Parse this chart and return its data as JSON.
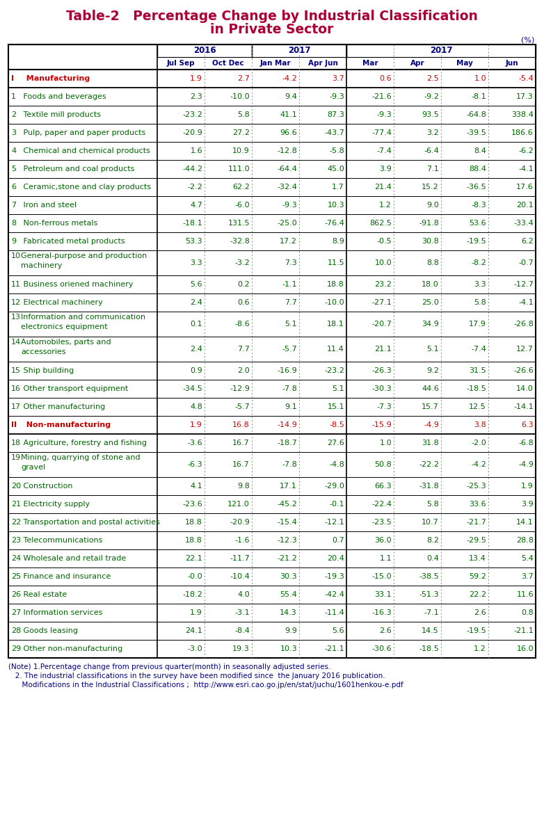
{
  "title_line1": "Table-2   Percentage Change by Industrial Classification",
  "title_line2": "in Private Sector",
  "title_color": "#aa0033",
  "header_color": "#000080",
  "unit_label": "(%)",
  "col_headers_bot": [
    "Jul Sep",
    "Oct Dec",
    "Jan Mar",
    "Apr Jun",
    "Mar",
    "Apr",
    "May",
    "Jun"
  ],
  "rows": [
    {
      "num": "I",
      "label": "  Manufacturing",
      "label_color": "#cc0000",
      "vals": [
        "1.9",
        "2.7",
        "-4.2",
        "3.7",
        "0.6",
        "2.5",
        "1.0",
        "-5.4"
      ],
      "val_color": "#cc0000",
      "bold": true,
      "multiline": false
    },
    {
      "num": "1",
      "label": " Foods and beverages",
      "label_color": "#006600",
      "vals": [
        "2.3",
        "-10.0",
        "9.4",
        "-9.3",
        "-21.6",
        "-9.2",
        "-8.1",
        "17.3"
      ],
      "val_color": "#006600",
      "bold": false,
      "multiline": false
    },
    {
      "num": "2",
      "label": " Textile mill products",
      "label_color": "#006600",
      "vals": [
        "-23.2",
        "5.8",
        "41.1",
        "87.3",
        "-9.3",
        "93.5",
        "-64.8",
        "338.4"
      ],
      "val_color": "#006600",
      "bold": false,
      "multiline": false
    },
    {
      "num": "3",
      "label": " Pulp, paper and paper products",
      "label_color": "#006600",
      "vals": [
        "-20.9",
        "27.2",
        "96.6",
        "-43.7",
        "-77.4",
        "3.2",
        "-39.5",
        "186.6"
      ],
      "val_color": "#006600",
      "bold": false,
      "multiline": false
    },
    {
      "num": "4",
      "label": " Chemical and chemical products",
      "label_color": "#006600",
      "vals": [
        "1.6",
        "10.9",
        "-12.8",
        "-5.8",
        "-7.4",
        "-6.4",
        "8.4",
        "-6.2"
      ],
      "val_color": "#006600",
      "bold": false,
      "multiline": false
    },
    {
      "num": "5",
      "label": " Petroleum and coal products",
      "label_color": "#006600",
      "vals": [
        "-44.2",
        "111.0",
        "-64.4",
        "45.0",
        "3.9",
        "7.1",
        "88.4",
        "-4.1"
      ],
      "val_color": "#006600",
      "bold": false,
      "multiline": false
    },
    {
      "num": "6",
      "label": " Ceramic,stone and clay products",
      "label_color": "#006600",
      "vals": [
        "-2.2",
        "62.2",
        "-32.4",
        "1.7",
        "21.4",
        "15.2",
        "-36.5",
        "17.6"
      ],
      "val_color": "#006600",
      "bold": false,
      "multiline": false
    },
    {
      "num": "7",
      "label": " Iron and steel",
      "label_color": "#006600",
      "vals": [
        "4.7",
        "-6.0",
        "-9.3",
        "10.3",
        "1.2",
        "9.0",
        "-8.3",
        "20.1"
      ],
      "val_color": "#006600",
      "bold": false,
      "multiline": false
    },
    {
      "num": "8",
      "label": " Non-ferrous metals",
      "label_color": "#006600",
      "vals": [
        "-18.1",
        "131.5",
        "-25.0",
        "-76.4",
        "862.5",
        "-91.8",
        "53.6",
        "-33.4"
      ],
      "val_color": "#006600",
      "bold": false,
      "multiline": false
    },
    {
      "num": "9",
      "label": " Fabricated metal products",
      "label_color": "#006600",
      "vals": [
        "53.3",
        "-32.8",
        "17.2",
        "8.9",
        "-0.5",
        "30.8",
        "-19.5",
        "6.2"
      ],
      "val_color": "#006600",
      "bold": false,
      "multiline": false
    },
    {
      "num": "10",
      "label1": "General-purpose and production",
      "label2": "machinery",
      "label_color": "#006600",
      "vals": [
        "3.3",
        "-3.2",
        "7.3",
        "11.5",
        "10.0",
        "8.8",
        "-8.2",
        "-0.7"
      ],
      "val_color": "#006600",
      "bold": false,
      "multiline": true
    },
    {
      "num": "11",
      "label": " Business oriened machinery",
      "label_color": "#006600",
      "vals": [
        "5.6",
        "0.2",
        "-1.1",
        "18.8",
        "23.2",
        "18.0",
        "3.3",
        "-12.7"
      ],
      "val_color": "#006600",
      "bold": false,
      "multiline": false
    },
    {
      "num": "12",
      "label": " Electrical machinery",
      "label_color": "#006600",
      "vals": [
        "2.4",
        "0.6",
        "7.7",
        "-10.0",
        "-27.1",
        "25.0",
        "5.8",
        "-4.1"
      ],
      "val_color": "#006600",
      "bold": false,
      "multiline": false
    },
    {
      "num": "13",
      "label1": "Information and communication",
      "label2": "electronics equipment",
      "label_color": "#006600",
      "vals": [
        "0.1",
        "-8.6",
        "5.1",
        "18.1",
        "-20.7",
        "34.9",
        "17.9",
        "-26.8"
      ],
      "val_color": "#006600",
      "bold": false,
      "multiline": true
    },
    {
      "num": "14",
      "label1": "Automobiles, parts and",
      "label2": "accessories",
      "label_color": "#006600",
      "vals": [
        "2.4",
        "7.7",
        "-5.7",
        "11.4",
        "21.1",
        "5.1",
        "-7.4",
        "12.7"
      ],
      "val_color": "#006600",
      "bold": false,
      "multiline": true
    },
    {
      "num": "15",
      "label": " Ship building",
      "label_color": "#006600",
      "vals": [
        "0.9",
        "2.0",
        "-16.9",
        "-23.2",
        "-26.3",
        "9.2",
        "31.5",
        "-26.6"
      ],
      "val_color": "#006600",
      "bold": false,
      "multiline": false
    },
    {
      "num": "16",
      "label": " Other transport equipment",
      "label_color": "#006600",
      "vals": [
        "-34.5",
        "-12.9",
        "-7.8",
        "5.1",
        "-30.3",
        "44.6",
        "-18.5",
        "14.0"
      ],
      "val_color": "#006600",
      "bold": false,
      "multiline": false
    },
    {
      "num": "17",
      "label": " Other manufacturing",
      "label_color": "#006600",
      "vals": [
        "4.8",
        "-5.7",
        "9.1",
        "15.1",
        "-7.3",
        "15.7",
        "12.5",
        "-14.1"
      ],
      "val_color": "#006600",
      "bold": false,
      "multiline": false
    },
    {
      "num": "II",
      "label": "  Non-manufacturing",
      "label_color": "#cc0000",
      "vals": [
        "1.9",
        "16.8",
        "-14.9",
        "-8.5",
        "-15.9",
        "-4.9",
        "3.8",
        "6.3"
      ],
      "val_color": "#cc0000",
      "bold": true,
      "multiline": false
    },
    {
      "num": "18",
      "label": " Agriculture, forestry and fishing",
      "label_color": "#006600",
      "vals": [
        "-3.6",
        "16.7",
        "-18.7",
        "27.6",
        "1.0",
        "31.8",
        "-2.0",
        "-6.8"
      ],
      "val_color": "#006600",
      "bold": false,
      "multiline": false
    },
    {
      "num": "19",
      "label1": "Mining, quarrying of stone and",
      "label2": "gravel",
      "label_color": "#006600",
      "vals": [
        "-6.3",
        "16.7",
        "-7.8",
        "-4.8",
        "50.8",
        "-22.2",
        "-4.2",
        "-4.9"
      ],
      "val_color": "#006600",
      "bold": false,
      "multiline": true
    },
    {
      "num": "20",
      "label": " Construction",
      "label_color": "#006600",
      "vals": [
        "4.1",
        "9.8",
        "17.1",
        "-29.0",
        "66.3",
        "-31.8",
        "-25.3",
        "1.9"
      ],
      "val_color": "#006600",
      "bold": false,
      "multiline": false
    },
    {
      "num": "21",
      "label": " Electricity supply",
      "label_color": "#006600",
      "vals": [
        "-23.6",
        "121.0",
        "-45.2",
        "-0.1",
        "-22.4",
        "5.8",
        "33.6",
        "3.9"
      ],
      "val_color": "#006600",
      "bold": false,
      "multiline": false
    },
    {
      "num": "22",
      "label": " Transportation and postal activities",
      "label_color": "#006600",
      "vals": [
        "18.8",
        "-20.9",
        "-15.4",
        "-12.1",
        "-23.5",
        "10.7",
        "-21.7",
        "14.1"
      ],
      "val_color": "#006600",
      "bold": false,
      "multiline": false
    },
    {
      "num": "23",
      "label": " Telecommunications",
      "label_color": "#006600",
      "vals": [
        "18.8",
        "-1.6",
        "-12.3",
        "0.7",
        "36.0",
        "8.2",
        "-29.5",
        "28.8"
      ],
      "val_color": "#006600",
      "bold": false,
      "multiline": false
    },
    {
      "num": "24",
      "label": " Wholesale and retail trade",
      "label_color": "#006600",
      "vals": [
        "22.1",
        "-11.7",
        "-21.2",
        "20.4",
        "1.1",
        "0.4",
        "13.4",
        "5.4"
      ],
      "val_color": "#006600",
      "bold": false,
      "multiline": false
    },
    {
      "num": "25",
      "label": " Finance and insurance",
      "label_color": "#006600",
      "vals": [
        "-0.0",
        "-10.4",
        "30.3",
        "-19.3",
        "-15.0",
        "-38.5",
        "59.2",
        "3.7"
      ],
      "val_color": "#006600",
      "bold": false,
      "multiline": false
    },
    {
      "num": "26",
      "label": " Real estate",
      "label_color": "#006600",
      "vals": [
        "-18.2",
        "4.0",
        "55.4",
        "-42.4",
        "33.1",
        "-51.3",
        "22.2",
        "11.6"
      ],
      "val_color": "#006600",
      "bold": false,
      "multiline": false
    },
    {
      "num": "27",
      "label": " Information services",
      "label_color": "#006600",
      "vals": [
        "1.9",
        "-3.1",
        "14.3",
        "-11.4",
        "-16.3",
        "-7.1",
        "2.6",
        "0.8"
      ],
      "val_color": "#006600",
      "bold": false,
      "multiline": false
    },
    {
      "num": "28",
      "label": " Goods leasing",
      "label_color": "#006600",
      "vals": [
        "24.1",
        "-8.4",
        "9.9",
        "5.6",
        "2.6",
        "14.5",
        "-19.5",
        "-21.1"
      ],
      "val_color": "#006600",
      "bold": false,
      "multiline": false
    },
    {
      "num": "29",
      "label": " Other non-manufacturing",
      "label_color": "#006600",
      "vals": [
        "-3.0",
        "19.3",
        "10.3",
        "-21.1",
        "-30.6",
        "-18.5",
        "1.2",
        "16.0"
      ],
      "val_color": "#006600",
      "bold": false,
      "multiline": false
    }
  ],
  "footnotes": [
    "(Note) 1.Percentage change from previous quarter(month) in seasonally adjusted series.",
    "   2. The industrial classifications in the survey have been modified since  the January 2016 publication.",
    "      Modifications in the Industrial Classifications ;  http://www.esri.cao.go.jp/en/stat/juchu/1601henkou-e.pdf"
  ],
  "footnote_color": "#000080"
}
